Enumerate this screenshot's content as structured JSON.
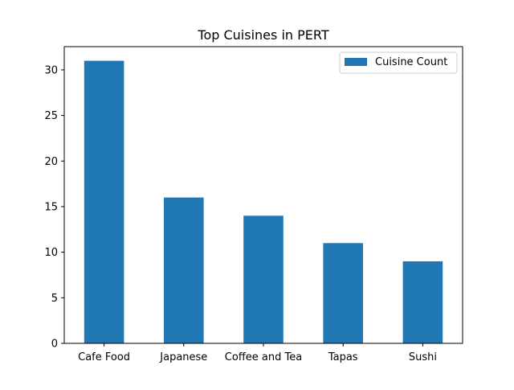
{
  "chart_data": {
    "type": "bar",
    "title": "Top Cuisines in PERT",
    "xlabel": "",
    "ylabel": "",
    "categories": [
      "Cafe Food",
      "Japanese",
      "Coffee and Tea",
      "Tapas",
      "Sushi"
    ],
    "series": [
      {
        "name": "Cuisine Count",
        "values": [
          31,
          16,
          14,
          11,
          9
        ],
        "color": "#1f77b4"
      }
    ],
    "ylim": [
      0,
      32.55
    ],
    "yticks": [
      0,
      5,
      10,
      15,
      20,
      25,
      30
    ],
    "grid": false,
    "legend_position": "top-right"
  }
}
